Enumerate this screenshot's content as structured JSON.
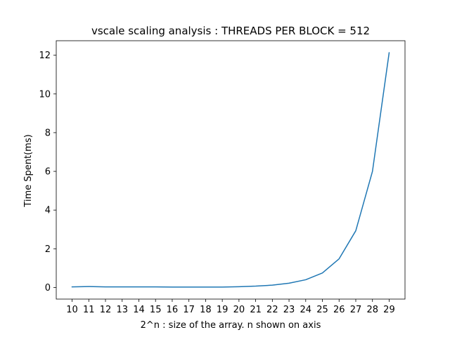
{
  "chart_data": {
    "type": "line",
    "title": "vscale scaling analysis : THREADS PER BLOCK = 512",
    "xlabel": "2^n : size of the array. n shown on axis",
    "ylabel": "Time Spent(ms)",
    "x": [
      10,
      11,
      12,
      13,
      14,
      15,
      16,
      17,
      18,
      19,
      20,
      21,
      22,
      23,
      24,
      25,
      26,
      27,
      28,
      29
    ],
    "series": [
      {
        "values": [
          0.03,
          0.05,
          0.03,
          0.03,
          0.03,
          0.03,
          0.02,
          0.02,
          0.02,
          0.02,
          0.04,
          0.07,
          0.12,
          0.22,
          0.4,
          0.75,
          1.48,
          2.93,
          6.0,
          12.13
        ],
        "color": "#1f77b4"
      }
    ],
    "xticks": [
      "10",
      "11",
      "12",
      "13",
      "14",
      "15",
      "16",
      "17",
      "18",
      "19",
      "20",
      "21",
      "22",
      "23",
      "24",
      "25",
      "26",
      "27",
      "28",
      "29"
    ],
    "yticks": [
      0,
      2,
      4,
      6,
      8,
      10,
      12
    ],
    "xlim": [
      9.05,
      29.95
    ],
    "ylim": [
      -0.6,
      12.75
    ],
    "grid": false,
    "legend": "none"
  }
}
